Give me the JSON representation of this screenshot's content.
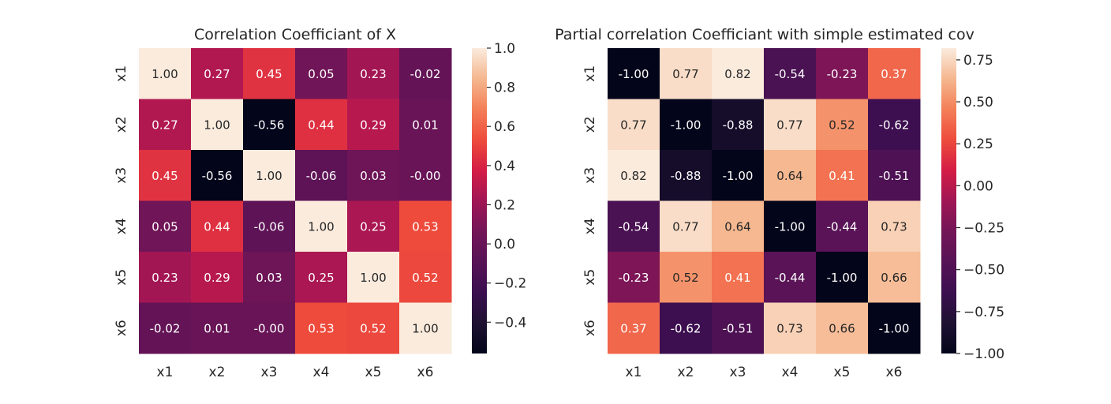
{
  "chart_data": [
    {
      "type": "heatmap",
      "title": "Correlation Coefficiant of X",
      "xlabel": "",
      "ylabel": "",
      "x_categories": [
        "x1",
        "x2",
        "x3",
        "x4",
        "x5",
        "x6"
      ],
      "y_categories": [
        "x1",
        "x2",
        "x3",
        "x4",
        "x5",
        "x6"
      ],
      "values": [
        [
          1.0,
          0.27,
          0.45,
          0.05,
          0.23,
          -0.02
        ],
        [
          0.27,
          1.0,
          -0.56,
          0.44,
          0.29,
          0.01
        ],
        [
          0.45,
          -0.56,
          1.0,
          -0.06,
          0.03,
          -0.0
        ],
        [
          0.05,
          0.44,
          -0.06,
          1.0,
          0.25,
          0.53
        ],
        [
          0.23,
          0.29,
          0.03,
          0.25,
          1.0,
          0.52
        ],
        [
          -0.02,
          0.01,
          -0.0,
          0.53,
          0.52,
          1.0
        ]
      ],
      "annotation_format": "0.00",
      "colormap": "rocket",
      "vmin": -0.56,
      "vmax": 1.0,
      "colorbar_ticks": [
        1.0,
        0.8,
        0.6,
        0.4,
        0.2,
        0.0,
        -0.2,
        -0.4
      ],
      "colorbar_tick_labels": [
        "1.0",
        "0.8",
        "0.6",
        "0.4",
        "0.2",
        "0.0",
        "−0.2",
        "−0.4"
      ]
    },
    {
      "type": "heatmap",
      "title": "Partial correlation Coefficiant with simple estimated cov",
      "xlabel": "",
      "ylabel": "",
      "x_categories": [
        "x1",
        "x2",
        "x3",
        "x4",
        "x5",
        "x6"
      ],
      "y_categories": [
        "x1",
        "x2",
        "x3",
        "x4",
        "x5",
        "x6"
      ],
      "values": [
        [
          -1.0,
          0.77,
          0.82,
          -0.54,
          -0.23,
          0.37
        ],
        [
          0.77,
          -1.0,
          -0.88,
          0.77,
          0.52,
          -0.62
        ],
        [
          0.82,
          -0.88,
          -1.0,
          0.64,
          0.41,
          -0.51
        ],
        [
          -0.54,
          0.77,
          0.64,
          -1.0,
          -0.44,
          0.73
        ],
        [
          -0.23,
          0.52,
          0.41,
          -0.44,
          -1.0,
          0.66
        ],
        [
          0.37,
          -0.62,
          -0.51,
          0.73,
          0.66,
          -1.0
        ]
      ],
      "annotation_format": "0.00",
      "colormap": "rocket",
      "vmin": -1.0,
      "vmax": 0.82,
      "colorbar_ticks": [
        0.75,
        0.5,
        0.25,
        0.0,
        -0.25,
        -0.5,
        -0.75,
        -1.0
      ],
      "colorbar_tick_labels": [
        "0.75",
        "0.50",
        "0.25",
        "0.00",
        "−0.25",
        "−0.50",
        "−0.75",
        "−1.00"
      ]
    }
  ]
}
